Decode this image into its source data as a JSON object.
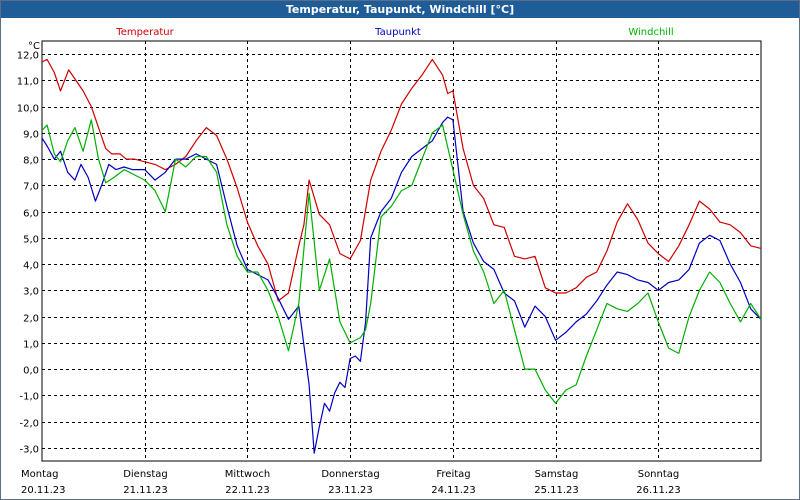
{
  "window": {
    "title": "Temperatur, Taupunkt, Windchill [°C]"
  },
  "chart_data": {
    "type": "line",
    "title": "Temperatur, Taupunkt, Windchill [°C]",
    "ylabel": "°C",
    "xlabel": "",
    "ylim": [
      -3.5,
      12.5
    ],
    "xlim": [
      0,
      7
    ],
    "yticks": [
      12.0,
      11.0,
      10.0,
      9.0,
      8.0,
      7.0,
      6.0,
      5.0,
      4.0,
      3.0,
      2.0,
      1.0,
      0.0,
      -1.0,
      -2.0,
      -3.0
    ],
    "ytick_labels": [
      "12,0",
      "11,0",
      "10,0",
      "9,0",
      "8,0",
      "7,0",
      "6,0",
      "5,0",
      "4,0",
      "3,0",
      "2,0",
      "1,0",
      "0,0",
      "-1,0",
      "-2,0",
      "-3,0"
    ],
    "grid": true,
    "legend": "top",
    "days": [
      {
        "x": 0,
        "day": "Montag",
        "date": "20.11.23"
      },
      {
        "x": 1,
        "day": "Dienstag",
        "date": "21.11.23"
      },
      {
        "x": 2,
        "day": "Mittwoch",
        "date": "22.11.23"
      },
      {
        "x": 3,
        "day": "Donnerstag",
        "date": "23.11.23"
      },
      {
        "x": 4,
        "day": "Freitag",
        "date": "24.11.23"
      },
      {
        "x": 5,
        "day": "Samstag",
        "date": "25.11.23"
      },
      {
        "x": 6,
        "day": "Sonntag",
        "date": "26.11.23"
      }
    ],
    "series": [
      {
        "name": "Temperatur",
        "color": "#d00000",
        "x": [
          0.0,
          0.05,
          0.12,
          0.18,
          0.26,
          0.33,
          0.4,
          0.48,
          0.55,
          0.62,
          0.68,
          0.76,
          0.82,
          0.9,
          1.0,
          1.1,
          1.2,
          1.3,
          1.4,
          1.5,
          1.6,
          1.7,
          1.8,
          1.9,
          2.0,
          2.1,
          2.2,
          2.3,
          2.4,
          2.5,
          2.55,
          2.6,
          2.7,
          2.8,
          2.9,
          3.0,
          3.1,
          3.2,
          3.3,
          3.4,
          3.5,
          3.6,
          3.7,
          3.8,
          3.9,
          3.95,
          4.0,
          4.1,
          4.2,
          4.3,
          4.4,
          4.5,
          4.6,
          4.7,
          4.8,
          4.9,
          5.0,
          5.1,
          5.2,
          5.3,
          5.4,
          5.5,
          5.6,
          5.7,
          5.8,
          5.9,
          6.0,
          6.1,
          6.2,
          6.3,
          6.4,
          6.5,
          6.6,
          6.7,
          6.8,
          6.9,
          7.0
        ],
        "y": [
          11.7,
          11.8,
          11.3,
          10.6,
          11.4,
          11.0,
          10.6,
          10.0,
          9.2,
          8.4,
          8.2,
          8.2,
          8.0,
          8.0,
          7.9,
          7.8,
          7.6,
          7.8,
          8.1,
          8.7,
          9.2,
          8.9,
          8.0,
          6.9,
          5.6,
          4.7,
          4.0,
          2.6,
          2.9,
          4.7,
          5.5,
          7.2,
          5.9,
          5.5,
          4.4,
          4.2,
          4.9,
          7.2,
          8.3,
          9.1,
          10.1,
          10.7,
          11.2,
          11.8,
          11.2,
          10.5,
          10.6,
          8.4,
          7.0,
          6.5,
          5.5,
          5.4,
          4.3,
          4.2,
          4.3,
          3.1,
          2.9,
          2.9,
          3.1,
          3.5,
          3.7,
          4.5,
          5.6,
          6.3,
          5.7,
          4.8,
          4.4,
          4.1,
          4.7,
          5.5,
          6.4,
          6.1,
          5.6,
          5.5,
          5.2,
          4.7,
          4.6
        ]
      },
      {
        "name": "Taupunkt",
        "color": "#0000c0",
        "x": [
          0.0,
          0.05,
          0.12,
          0.18,
          0.25,
          0.32,
          0.38,
          0.45,
          0.52,
          0.58,
          0.65,
          0.72,
          0.8,
          0.88,
          1.0,
          1.1,
          1.2,
          1.3,
          1.4,
          1.5,
          1.6,
          1.7,
          1.8,
          1.9,
          2.0,
          2.1,
          2.2,
          2.3,
          2.4,
          2.5,
          2.6,
          2.65,
          2.7,
          2.75,
          2.8,
          2.85,
          2.9,
          2.95,
          3.0,
          3.05,
          3.1,
          3.15,
          3.2,
          3.3,
          3.4,
          3.5,
          3.6,
          3.7,
          3.8,
          3.9,
          3.95,
          4.0,
          4.1,
          4.2,
          4.3,
          4.4,
          4.5,
          4.6,
          4.7,
          4.8,
          4.9,
          5.0,
          5.1,
          5.2,
          5.3,
          5.4,
          5.5,
          5.6,
          5.7,
          5.8,
          5.9,
          6.0,
          6.1,
          6.2,
          6.3,
          6.4,
          6.5,
          6.6,
          6.7,
          6.8,
          6.9,
          7.0
        ],
        "y": [
          8.8,
          8.5,
          8.0,
          8.3,
          7.5,
          7.2,
          7.8,
          7.3,
          6.4,
          7.0,
          7.8,
          7.6,
          7.7,
          7.6,
          7.6,
          7.2,
          7.5,
          8.0,
          8.0,
          8.2,
          8.0,
          7.8,
          6.2,
          4.7,
          3.8,
          3.6,
          3.4,
          2.7,
          1.9,
          2.4,
          -0.6,
          -3.2,
          -2.2,
          -1.3,
          -1.6,
          -0.9,
          -0.5,
          -0.7,
          0.4,
          0.5,
          0.3,
          1.8,
          5.0,
          6.0,
          6.5,
          7.5,
          8.1,
          8.4,
          8.7,
          9.4,
          9.6,
          9.5,
          6.0,
          4.8,
          4.1,
          3.8,
          2.9,
          2.6,
          1.6,
          2.4,
          2.0,
          1.1,
          1.4,
          1.8,
          2.1,
          2.6,
          3.2,
          3.7,
          3.6,
          3.4,
          3.3,
          3.0,
          3.3,
          3.4,
          3.8,
          4.8,
          5.1,
          4.9,
          4.0,
          3.3,
          2.3,
          1.9
        ]
      },
      {
        "name": "Windchill",
        "color": "#00b000",
        "x": [
          0.0,
          0.05,
          0.12,
          0.18,
          0.25,
          0.32,
          0.4,
          0.48,
          0.55,
          0.62,
          0.7,
          0.8,
          0.9,
          1.0,
          1.1,
          1.2,
          1.3,
          1.4,
          1.5,
          1.6,
          1.7,
          1.8,
          1.9,
          2.0,
          2.1,
          2.2,
          2.3,
          2.4,
          2.5,
          2.6,
          2.7,
          2.8,
          2.9,
          3.0,
          3.1,
          3.15,
          3.2,
          3.3,
          3.4,
          3.5,
          3.6,
          3.7,
          3.8,
          3.9,
          4.0,
          4.1,
          4.2,
          4.3,
          4.4,
          4.5,
          4.6,
          4.7,
          4.8,
          4.9,
          5.0,
          5.1,
          5.2,
          5.3,
          5.4,
          5.5,
          5.6,
          5.7,
          5.8,
          5.9,
          6.0,
          6.1,
          6.2,
          6.3,
          6.4,
          6.5,
          6.6,
          6.7,
          6.8,
          6.9,
          7.0
        ],
        "y": [
          9.1,
          9.3,
          8.2,
          7.9,
          8.7,
          9.2,
          8.3,
          9.5,
          8.0,
          7.1,
          7.3,
          7.6,
          7.4,
          7.2,
          6.8,
          6.0,
          8.0,
          7.7,
          8.1,
          8.1,
          7.5,
          5.5,
          4.3,
          3.7,
          3.7,
          3.0,
          2.0,
          0.7,
          2.5,
          6.7,
          3.0,
          4.2,
          1.8,
          1.0,
          1.2,
          1.5,
          2.5,
          5.8,
          6.2,
          6.8,
          7.0,
          8.0,
          9.0,
          9.3,
          7.6,
          5.9,
          4.5,
          3.7,
          2.5,
          3.0,
          1.5,
          0.0,
          0.0,
          -0.8,
          -1.3,
          -0.8,
          -0.6,
          0.5,
          1.5,
          2.5,
          2.3,
          2.2,
          2.5,
          2.9,
          1.8,
          0.8,
          0.6,
          2.0,
          3.0,
          3.7,
          3.3,
          2.5,
          1.8,
          2.5,
          1.9
        ]
      }
    ]
  }
}
